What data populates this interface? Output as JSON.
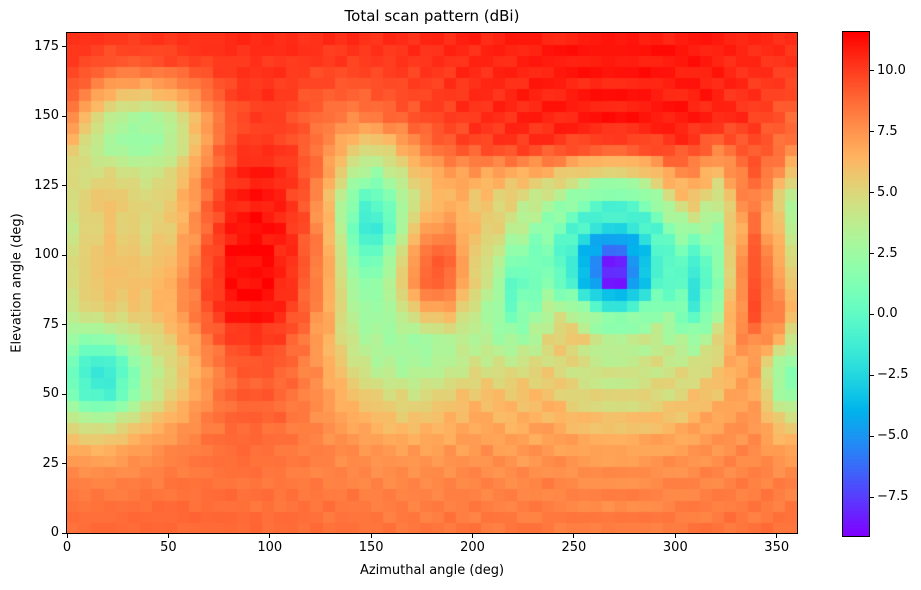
{
  "chart_data": {
    "type": "heatmap",
    "title": "Total scan pattern (dBi)",
    "xlabel": "Azimuthal angle (deg)",
    "ylabel": "Elevation angle (deg)",
    "x_range": [
      0,
      360
    ],
    "y_range": [
      0,
      180
    ],
    "grid": "off",
    "legend": "colorbar-right",
    "colormap": "rainbow",
    "value_unit": "dBi",
    "x_ticks": [
      0,
      50,
      100,
      150,
      200,
      250,
      300,
      350
    ],
    "x_tick_labels": [
      "0",
      "50",
      "100",
      "150",
      "200",
      "250",
      "300",
      "350"
    ],
    "y_ticks": [
      0,
      25,
      50,
      75,
      100,
      125,
      150,
      175
    ],
    "y_tick_labels": [
      "0",
      "25",
      "50",
      "75",
      "100",
      "125",
      "150",
      "175"
    ],
    "colorbar": {
      "vmin": -9.1,
      "vmax": 11.6,
      "tick_values": [
        10.0,
        7.5,
        5.0,
        2.5,
        0.0,
        -2.5,
        -5.0,
        -7.5
      ],
      "tick_labels": [
        "10.0",
        "7.5",
        "5.0",
        "2.5",
        "0.0",
        "−2.5",
        "−5.0",
        "−7.5"
      ]
    },
    "az_deg": [
      0,
      10,
      20,
      30,
      40,
      50,
      60,
      70,
      80,
      90,
      100,
      110,
      120,
      130,
      140,
      150,
      160,
      170,
      180,
      190,
      200,
      210,
      220,
      230,
      240,
      250,
      260,
      270,
      280,
      290,
      300,
      310,
      320,
      330,
      340,
      350,
      360
    ],
    "el_deg": [
      0,
      10,
      20,
      30,
      40,
      50,
      60,
      70,
      80,
      90,
      100,
      110,
      120,
      130,
      140,
      150,
      160,
      170,
      180
    ],
    "gain_dbi": [
      [
        8.8,
        8.8,
        8.8,
        8.8,
        8.9,
        8.9,
        8.9,
        8.9,
        8.9,
        8.8,
        8.8,
        8.8,
        8.7,
        8.7,
        8.6,
        8.6,
        8.5,
        8.5,
        8.5,
        8.5,
        8.5,
        8.5,
        8.5,
        8.5,
        8.5,
        8.4,
        8.4,
        8.4,
        8.4,
        8.4,
        8.5,
        8.5,
        8.5,
        8.6,
        8.6,
        8.6,
        8.7
      ],
      [
        8.6,
        8.5,
        8.5,
        8.6,
        8.6,
        8.7,
        8.7,
        8.7,
        8.7,
        8.7,
        8.6,
        8.6,
        8.5,
        8.4,
        8.4,
        8.3,
        8.2,
        8.2,
        8.2,
        8.2,
        8.2,
        8.2,
        8.2,
        8.2,
        8.1,
        8.1,
        8.0,
        8.0,
        8.0,
        8.1,
        8.1,
        8.2,
        8.2,
        8.3,
        8.3,
        8.3,
        8.4
      ],
      [
        8.2,
        8.0,
        8.0,
        8.1,
        8.2,
        8.3,
        8.4,
        8.5,
        8.5,
        8.4,
        8.4,
        8.3,
        8.2,
        8.1,
        8.0,
        7.9,
        7.9,
        7.8,
        7.8,
        7.8,
        7.9,
        7.9,
        7.8,
        7.9,
        7.9,
        7.8,
        7.7,
        7.7,
        7.7,
        7.8,
        7.8,
        7.9,
        8.0,
        8.1,
        8.1,
        8.0,
        7.9
      ],
      [
        7.0,
        6.5,
        6.5,
        7.0,
        7.4,
        7.8,
        8.2,
        8.5,
        8.8,
        8.8,
        8.6,
        8.4,
        8.2,
        8.0,
        7.8,
        7.5,
        7.3,
        7.2,
        7.2,
        7.3,
        7.4,
        7.4,
        7.3,
        7.4,
        7.4,
        7.2,
        7.0,
        7.0,
        7.0,
        7.2,
        7.2,
        7.4,
        7.5,
        7.8,
        7.8,
        7.2,
        7.0
      ],
      [
        5.0,
        4.0,
        4.0,
        5.0,
        6.0,
        6.8,
        7.5,
        8.3,
        8.8,
        9.0,
        8.8,
        8.5,
        8.0,
        7.5,
        7.0,
        6.5,
        6.0,
        6.0,
        6.2,
        6.5,
        6.8,
        6.8,
        6.5,
        6.8,
        6.8,
        6.2,
        6.0,
        5.8,
        6.0,
        6.2,
        6.2,
        6.8,
        7.0,
        7.5,
        7.5,
        6.0,
        5.0
      ],
      [
        1.8,
        -0.5,
        -1.0,
        1.0,
        3.5,
        5.0,
        6.5,
        7.8,
        8.8,
        9.2,
        9.0,
        8.6,
        8.0,
        7.0,
        6.0,
        5.5,
        5.0,
        4.5,
        5.0,
        5.5,
        6.0,
        6.0,
        5.8,
        6.0,
        6.0,
        5.0,
        4.8,
        4.5,
        4.8,
        5.0,
        5.0,
        5.8,
        6.0,
        7.0,
        7.0,
        3.0,
        1.8
      ],
      [
        1.2,
        -1.5,
        -2.0,
        0.5,
        3.0,
        4.5,
        6.0,
        7.5,
        8.8,
        9.3,
        9.2,
        8.8,
        8.0,
        6.5,
        5.0,
        3.5,
        3.0,
        2.8,
        3.0,
        3.5,
        4.5,
        4.5,
        4.5,
        5.0,
        5.0,
        4.5,
        4.0,
        4.0,
        4.0,
        4.5,
        4.5,
        4.5,
        5.5,
        7.0,
        7.0,
        2.5,
        1.2
      ],
      [
        2.8,
        1.5,
        2.0,
        3.5,
        4.5,
        5.5,
        7.0,
        8.5,
        9.8,
        10.2,
        10.0,
        9.3,
        8.0,
        6.0,
        4.0,
        3.0,
        2.8,
        2.5,
        2.8,
        3.5,
        3.5,
        3.0,
        2.5,
        3.0,
        5.5,
        6.0,
        4.0,
        3.0,
        3.5,
        4.0,
        3.0,
        2.5,
        4.5,
        7.5,
        8.0,
        7.0,
        3.0
      ],
      [
        4.0,
        5.0,
        5.5,
        5.5,
        5.8,
        6.5,
        8.0,
        9.5,
        10.8,
        11.2,
        11.0,
        10.0,
        8.5,
        6.5,
        3.5,
        2.0,
        3.0,
        5.0,
        7.0,
        6.5,
        4.0,
        2.5,
        0.5,
        2.0,
        4.0,
        3.5,
        1.5,
        0.5,
        1.0,
        2.0,
        2.0,
        -1.0,
        2.5,
        7.5,
        9.5,
        8.0,
        6.5
      ],
      [
        4.5,
        5.5,
        6.0,
        6.0,
        6.0,
        6.5,
        8.0,
        9.8,
        11.0,
        11.5,
        11.2,
        10.3,
        8.8,
        6.5,
        3.0,
        1.5,
        3.5,
        7.5,
        9.4,
        8.5,
        5.5,
        4.0,
        -0.5,
        1.0,
        1.5,
        -1.5,
        -5.0,
        -9.0,
        -5.0,
        -1.0,
        0.5,
        -2.0,
        1.0,
        7.0,
        9.5,
        7.5,
        5.0
      ],
      [
        4.5,
        5.5,
        6.0,
        5.8,
        5.5,
        6.0,
        7.5,
        9.5,
        11.0,
        11.5,
        11.3,
        10.5,
        9.0,
        6.5,
        2.0,
        -0.5,
        3.0,
        7.0,
        9.4,
        8.8,
        5.5,
        4.5,
        1.5,
        1.0,
        0.5,
        -2.0,
        -5.5,
        -8.5,
        -5.0,
        -1.5,
        0.5,
        -1.0,
        1.5,
        7.0,
        9.5,
        7.0,
        4.0
      ],
      [
        4.0,
        5.0,
        5.8,
        5.2,
        5.0,
        5.5,
        7.0,
        9.0,
        10.8,
        11.3,
        11.2,
        10.5,
        9.0,
        6.0,
        1.0,
        -2.5,
        0.5,
        5.5,
        7.5,
        7.5,
        6.0,
        5.5,
        4.0,
        2.5,
        1.5,
        -0.5,
        -2.0,
        -2.5,
        -2.0,
        -0.5,
        2.0,
        3.0,
        2.0,
        6.5,
        8.5,
        6.0,
        3.0
      ],
      [
        4.5,
        5.5,
        6.0,
        5.5,
        5.0,
        5.5,
        7.0,
        9.0,
        10.5,
        11.0,
        11.0,
        10.3,
        8.8,
        5.5,
        1.5,
        -1.0,
        1.5,
        4.0,
        6.0,
        6.5,
        6.0,
        5.5,
        5.0,
        4.0,
        3.0,
        2.0,
        0.5,
        0.0,
        0.5,
        2.0,
        5.0,
        6.0,
        3.5,
        7.0,
        8.5,
        5.5,
        2.2
      ],
      [
        5.0,
        4.5,
        5.0,
        4.5,
        4.2,
        4.8,
        6.5,
        8.5,
        10.0,
        10.8,
        10.8,
        10.2,
        9.2,
        7.0,
        4.0,
        2.2,
        3.5,
        5.5,
        6.5,
        7.2,
        7.2,
        7.0,
        6.8,
        6.5,
        6.5,
        5.5,
        5.0,
        4.5,
        5.0,
        6.0,
        8.0,
        7.5,
        6.0,
        8.0,
        9.2,
        8.0,
        5.0
      ],
      [
        6.5,
        4.5,
        2.8,
        2.2,
        2.2,
        3.0,
        5.0,
        7.5,
        9.5,
        10.2,
        10.2,
        9.8,
        9.0,
        7.5,
        6.0,
        5.0,
        6.0,
        7.5,
        8.8,
        9.4,
        9.8,
        10.0,
        10.2,
        10.3,
        10.2,
        10.0,
        9.8,
        9.7,
        9.8,
        10.0,
        10.2,
        9.8,
        8.5,
        9.2,
        9.6,
        8.8,
        8.0
      ],
      [
        8.5,
        6.0,
        4.0,
        3.0,
        2.8,
        3.5,
        5.5,
        7.5,
        9.0,
        9.8,
        10.0,
        9.6,
        9.0,
        8.4,
        8.0,
        8.2,
        8.8,
        9.3,
        9.7,
        10.0,
        10.3,
        10.5,
        10.6,
        10.7,
        10.8,
        10.9,
        11.0,
        11.0,
        11.0,
        11.0,
        11.0,
        10.9,
        10.7,
        10.4,
        10.0,
        9.4,
        8.8
      ],
      [
        9.5,
        8.5,
        7.0,
        6.5,
        6.5,
        7.0,
        7.8,
        8.8,
        9.8,
        10.2,
        10.2,
        10.0,
        9.6,
        9.3,
        9.2,
        9.4,
        9.6,
        9.8,
        10.0,
        10.2,
        10.4,
        10.5,
        10.6,
        10.7,
        10.8,
        10.8,
        10.8,
        10.8,
        10.8,
        10.8,
        10.8,
        10.8,
        10.7,
        10.5,
        10.2,
        9.9,
        9.6
      ],
      [
        10.2,
        9.8,
        9.4,
        9.3,
        9.4,
        9.6,
        9.8,
        10.0,
        10.2,
        10.3,
        10.3,
        10.2,
        10.1,
        10.0,
        10.0,
        10.0,
        10.1,
        10.2,
        10.3,
        10.4,
        10.5,
        10.6,
        10.7,
        10.8,
        10.9,
        11.0,
        11.0,
        11.0,
        11.0,
        11.0,
        11.0,
        10.9,
        10.8,
        10.6,
        10.4,
        10.2,
        10.1
      ],
      [
        10.5,
        10.4,
        10.3,
        10.3,
        10.3,
        10.4,
        10.5,
        10.5,
        10.6,
        10.6,
        10.6,
        10.6,
        10.5,
        10.5,
        10.5,
        10.5,
        10.5,
        10.6,
        10.6,
        10.7,
        10.7,
        10.8,
        10.8,
        10.9,
        10.9,
        11.0,
        11.0,
        11.0,
        11.0,
        11.0,
        11.0,
        10.9,
        10.9,
        10.8,
        10.7,
        10.6,
        10.5
      ]
    ],
    "render_hints": {
      "az_cell_deg": 6,
      "el_cell_deg": 4,
      "az_aspect": 0.75,
      "cell_noise_db": 0.12,
      "ripples": [
        {
          "az": 270,
          "el": 95,
          "amp": 1.0,
          "period": 9,
          "decay": 70
        },
        {
          "az": 90,
          "el": 95,
          "amp": 0.55,
          "period": 9,
          "decay": 55
        }
      ]
    }
  }
}
